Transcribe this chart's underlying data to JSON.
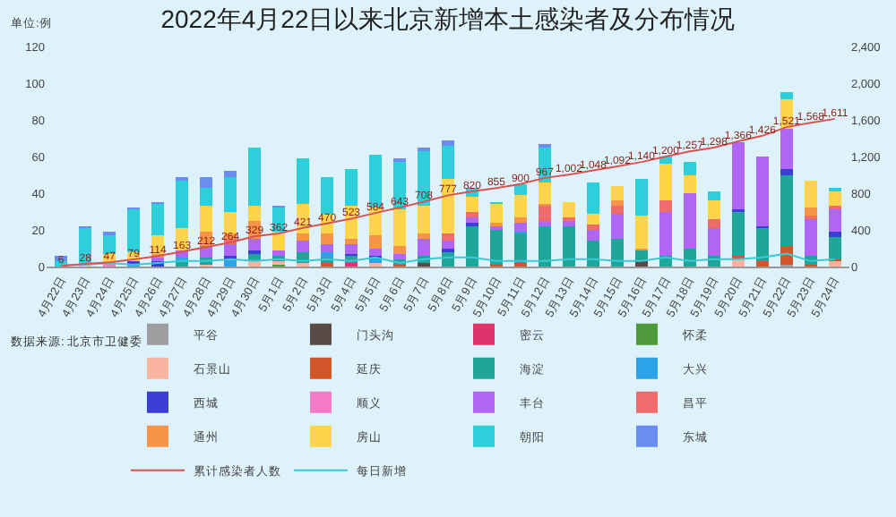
{
  "chart_data": {
    "type": "bar",
    "title": "2022年4月22日以来北京新增本土感染者及分布情况",
    "ylabel": "单位:例",
    "stacked": true,
    "legend": "bottom",
    "grid": false,
    "categories": [
      "4月22日",
      "4月23日",
      "4月24日",
      "4月25日",
      "4月26日",
      "4月27日",
      "4月28日",
      "4月29日",
      "4月30日",
      "5月1日",
      "5月2日",
      "5月3日",
      "5月4日",
      "5月5日",
      "5月6日",
      "5月7日",
      "5月8日",
      "5月9日",
      "5月10日",
      "5月11日",
      "5月12日",
      "5月13日",
      "5月14日",
      "5月15日",
      "5月16日",
      "5月17日",
      "5月18日",
      "5月19日",
      "5月20日",
      "5月21日",
      "5月22日",
      "5月23日",
      "5月24日"
    ],
    "ylim": [
      0,
      120
    ],
    "yticks": [
      0,
      20,
      40,
      60,
      80,
      100,
      120
    ],
    "y2lim": [
      0,
      2400
    ],
    "y2ticks": [
      {
        "value": 0,
        "label": "0"
      },
      {
        "value": 400,
        "label": "400"
      },
      {
        "value": 800,
        "label": "800"
      },
      {
        "value": 1200,
        "label": "1,200"
      },
      {
        "value": 1600,
        "label": "1,600"
      },
      {
        "value": 2000,
        "label": "2,000"
      },
      {
        "value": 2400,
        "label": "2,400"
      }
    ],
    "series": [
      {
        "name": "平谷",
        "color": "#9e9e9e",
        "values": [
          0,
          0,
          0,
          0,
          0,
          0,
          0,
          0,
          0,
          0,
          0,
          0,
          0,
          0,
          0,
          0,
          0,
          0,
          0,
          0,
          0,
          0,
          0,
          0,
          0,
          0,
          0,
          0,
          0,
          0,
          1,
          0,
          0
        ]
      },
      {
        "name": "门头沟",
        "color": "#5a4a48",
        "values": [
          0,
          0,
          0,
          0,
          0,
          0,
          0,
          0,
          0,
          0,
          0,
          0,
          0,
          0,
          0,
          2,
          0,
          0,
          0,
          0,
          0,
          0,
          0,
          0,
          3,
          0,
          0,
          0,
          0,
          0,
          0,
          0,
          0
        ]
      },
      {
        "name": "密云",
        "color": "#e0336b",
        "values": [
          0,
          0,
          0,
          0,
          0,
          0,
          0,
          0,
          0,
          0,
          0,
          0,
          2,
          0,
          0,
          0,
          0,
          0,
          0,
          0,
          0,
          0,
          0,
          0,
          0,
          0,
          0,
          0,
          0,
          0,
          0,
          0,
          0
        ]
      },
      {
        "name": "怀柔",
        "color": "#4e9a3a",
        "values": [
          0,
          0,
          0,
          0,
          0,
          0,
          0,
          0,
          0,
          1,
          0,
          0,
          0,
          0,
          0,
          0,
          0,
          0,
          0,
          0,
          0,
          0,
          0,
          0,
          0,
          0,
          0,
          0,
          0,
          0,
          0,
          0,
          0
        ]
      },
      {
        "name": "石景山",
        "color": "#f9b4a0",
        "values": [
          0,
          0,
          0,
          0,
          0,
          0,
          1,
          0,
          3,
          2,
          2,
          0,
          0,
          2,
          0,
          0,
          0,
          0,
          0,
          0,
          0,
          0,
          0,
          0,
          0,
          0,
          0,
          0,
          4,
          0,
          0,
          0,
          3
        ]
      },
      {
        "name": "延庆",
        "color": "#d1572a",
        "values": [
          0,
          0,
          0,
          0,
          0,
          0,
          0,
          0,
          0,
          0,
          0,
          2,
          0,
          0,
          1,
          0,
          0,
          0,
          1,
          2,
          0,
          0,
          0,
          0,
          0,
          0,
          0,
          0,
          2,
          3,
          10,
          1,
          1
        ]
      },
      {
        "name": "海淀",
        "color": "#1fa59a",
        "values": [
          0,
          0,
          0,
          0,
          0,
          3,
          4,
          0,
          4,
          3,
          6,
          3,
          4,
          0,
          3,
          4,
          8,
          22,
          19,
          16,
          22,
          22,
          14,
          15,
          6,
          6,
          10,
          6,
          24,
          18,
          39,
          5,
          12
        ]
      },
      {
        "name": "大兴",
        "color": "#2ba3e6",
        "values": [
          0,
          0,
          0,
          1,
          0,
          2,
          0,
          4,
          0,
          0,
          0,
          3,
          0,
          3,
          0,
          0,
          0,
          0,
          0,
          1,
          0,
          0,
          0,
          0,
          0,
          0,
          0,
          0,
          0,
          0,
          0,
          0,
          0
        ]
      },
      {
        "name": "西城",
        "color": "#3b3fd6",
        "values": [
          0,
          0,
          0,
          2,
          3,
          0,
          0,
          2,
          2,
          0,
          0,
          0,
          1,
          1,
          0,
          0,
          2,
          2,
          0,
          0,
          0,
          0,
          0,
          0,
          0,
          0,
          0,
          0,
          1,
          1,
          3,
          0,
          3
        ]
      },
      {
        "name": "顺义",
        "color": "#f27ac8",
        "values": [
          0,
          0,
          2,
          0,
          0,
          0,
          0,
          0,
          0,
          0,
          0,
          0,
          0,
          0,
          0,
          0,
          0,
          0,
          0,
          0,
          0,
          0,
          0,
          0,
          0,
          0,
          0,
          0,
          0,
          0,
          0,
          0,
          0
        ]
      },
      {
        "name": "丰台",
        "color": "#b066f5",
        "values": [
          0,
          0,
          0,
          0,
          2,
          4,
          6,
          6,
          6,
          3,
          6,
          4,
          5,
          4,
          3,
          9,
          4,
          3,
          2,
          5,
          3,
          3,
          6,
          14,
          0,
          24,
          30,
          15,
          37,
          38,
          22,
          20,
          12
        ]
      },
      {
        "name": "昌平",
        "color": "#f06b6b",
        "values": [
          0,
          0,
          0,
          0,
          0,
          0,
          0,
          3,
          0,
          0,
          0,
          0,
          0,
          0,
          0,
          0,
          4,
          3,
          0,
          0,
          8,
          2,
          3,
          4,
          0,
          6,
          0,
          5,
          0,
          0,
          0,
          2,
          2
        ]
      },
      {
        "name": "通州",
        "color": "#f7944a",
        "values": [
          0,
          0,
          0,
          0,
          2,
          0,
          8,
          3,
          10,
          0,
          4,
          6,
          3,
          7,
          4,
          3,
          0,
          0,
          2,
          3,
          1,
          0,
          0,
          3,
          1,
          0,
          0,
          0,
          0,
          0,
          0,
          4,
          0
        ]
      },
      {
        "name": "房山",
        "color": "#fcd54c",
        "values": [
          0,
          1,
          5,
          5,
          10,
          12,
          14,
          12,
          8,
          10,
          16,
          11,
          18,
          15,
          20,
          15,
          30,
          8,
          10,
          12,
          12,
          8,
          6,
          8,
          18,
          20,
          10,
          10,
          0,
          0,
          16,
          15,
          8
        ]
      },
      {
        "name": "朝阳",
        "color": "#2ccfda",
        "values": [
          3,
          20,
          10,
          23,
          17,
          26,
          10,
          19,
          32,
          13,
          25,
          20,
          20,
          29,
          26,
          30,
          18,
          5,
          1,
          6,
          19,
          0,
          17,
          0,
          20,
          4,
          7,
          5,
          0,
          0,
          4,
          0,
          2
        ]
      },
      {
        "name": "东城",
        "color": "#6b8cf0",
        "values": [
          3,
          1,
          2,
          1,
          1,
          2,
          6,
          3,
          0,
          1,
          0,
          0,
          0,
          0,
          2,
          2,
          3,
          0,
          0,
          0,
          2,
          0,
          0,
          0,
          0,
          0,
          0,
          0,
          0,
          0,
          0,
          0,
          0
        ]
      },
      {
        "name": "累计感染者人数",
        "type": "line",
        "axis": "y2",
        "color": "#d9534f",
        "values": [
          6,
          28,
          47,
          79,
          114,
          163,
          212,
          264,
          329,
          362,
          421,
          470,
          523,
          584,
          643,
          708,
          777,
          820,
          855,
          900,
          967,
          1002,
          1048,
          1092,
          1140,
          1200,
          1257,
          1298,
          1366,
          1426,
          1521,
          1568,
          1611
        ],
        "value_labels": [
          "6",
          "28",
          "47",
          "79",
          "114",
          "163",
          "212",
          "264",
          "329",
          "362",
          "421",
          "470",
          "523",
          "584",
          "643",
          "708",
          "777",
          "820",
          "855",
          "900",
          "967",
          "1,002",
          "1,048",
          "1,092",
          "1,140",
          "1,200",
          "1,257",
          "1,298",
          "1,366",
          "1,426",
          "1,521",
          "1,568",
          "1,611"
        ]
      },
      {
        "name": "每日新增",
        "type": "line",
        "color": "#3cc9d6",
        "values": [
          1,
          1,
          2,
          1,
          2,
          3,
          3,
          4,
          3,
          4,
          3,
          4,
          3,
          5,
          2,
          4,
          5,
          5,
          3,
          3,
          3,
          4,
          4,
          3,
          3,
          5,
          3,
          4,
          4,
          5,
          7,
          3,
          4
        ]
      }
    ],
    "annotations": [
      "数据来源: 北京市卫健委"
    ]
  }
}
